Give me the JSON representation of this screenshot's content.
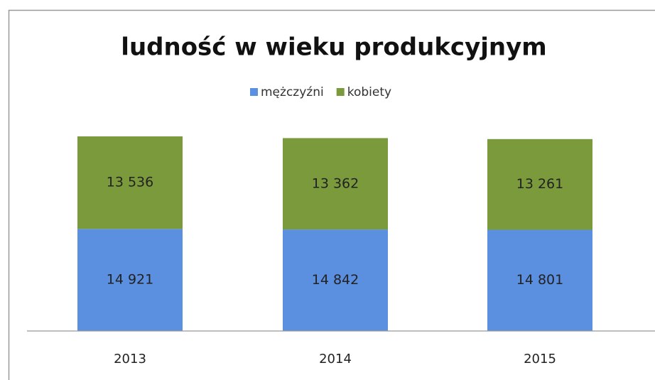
{
  "chart_data": {
    "type": "stacked_bar",
    "title": "ludność w wieku produkcyjnym",
    "categories": [
      "2013",
      "2014",
      "2015"
    ],
    "series": [
      {
        "name": "mężczyźni",
        "color": "#5b8fe0",
        "values": [
          14921,
          14842,
          14801
        ],
        "value_labels": [
          "14 921",
          "14 842",
          "14 801"
        ]
      },
      {
        "name": "kobiety",
        "color": "#7a9a3c",
        "values": [
          13536,
          13362,
          13261
        ],
        "value_labels": [
          "13 536",
          "13 362",
          "13 261"
        ]
      }
    ],
    "legend": "top"
  }
}
